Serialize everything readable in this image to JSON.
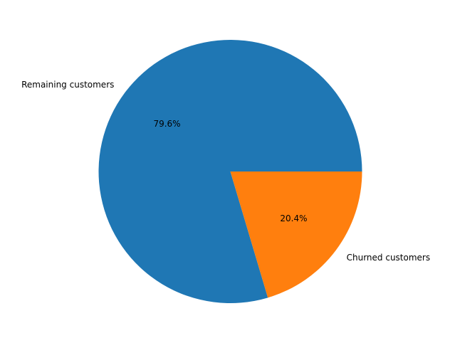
{
  "chart_data": {
    "type": "pie",
    "title": "",
    "slices": [
      {
        "label": "Remaining customers",
        "value": 79.6,
        "pct_label": "79.6%",
        "color": "#1f77b4"
      },
      {
        "label": "Churned customers",
        "value": 20.4,
        "pct_label": "20.4%",
        "color": "#ff7f0e"
      }
    ],
    "start_angle_deg": 0,
    "direction": "counterclockwise",
    "legend": "none"
  }
}
